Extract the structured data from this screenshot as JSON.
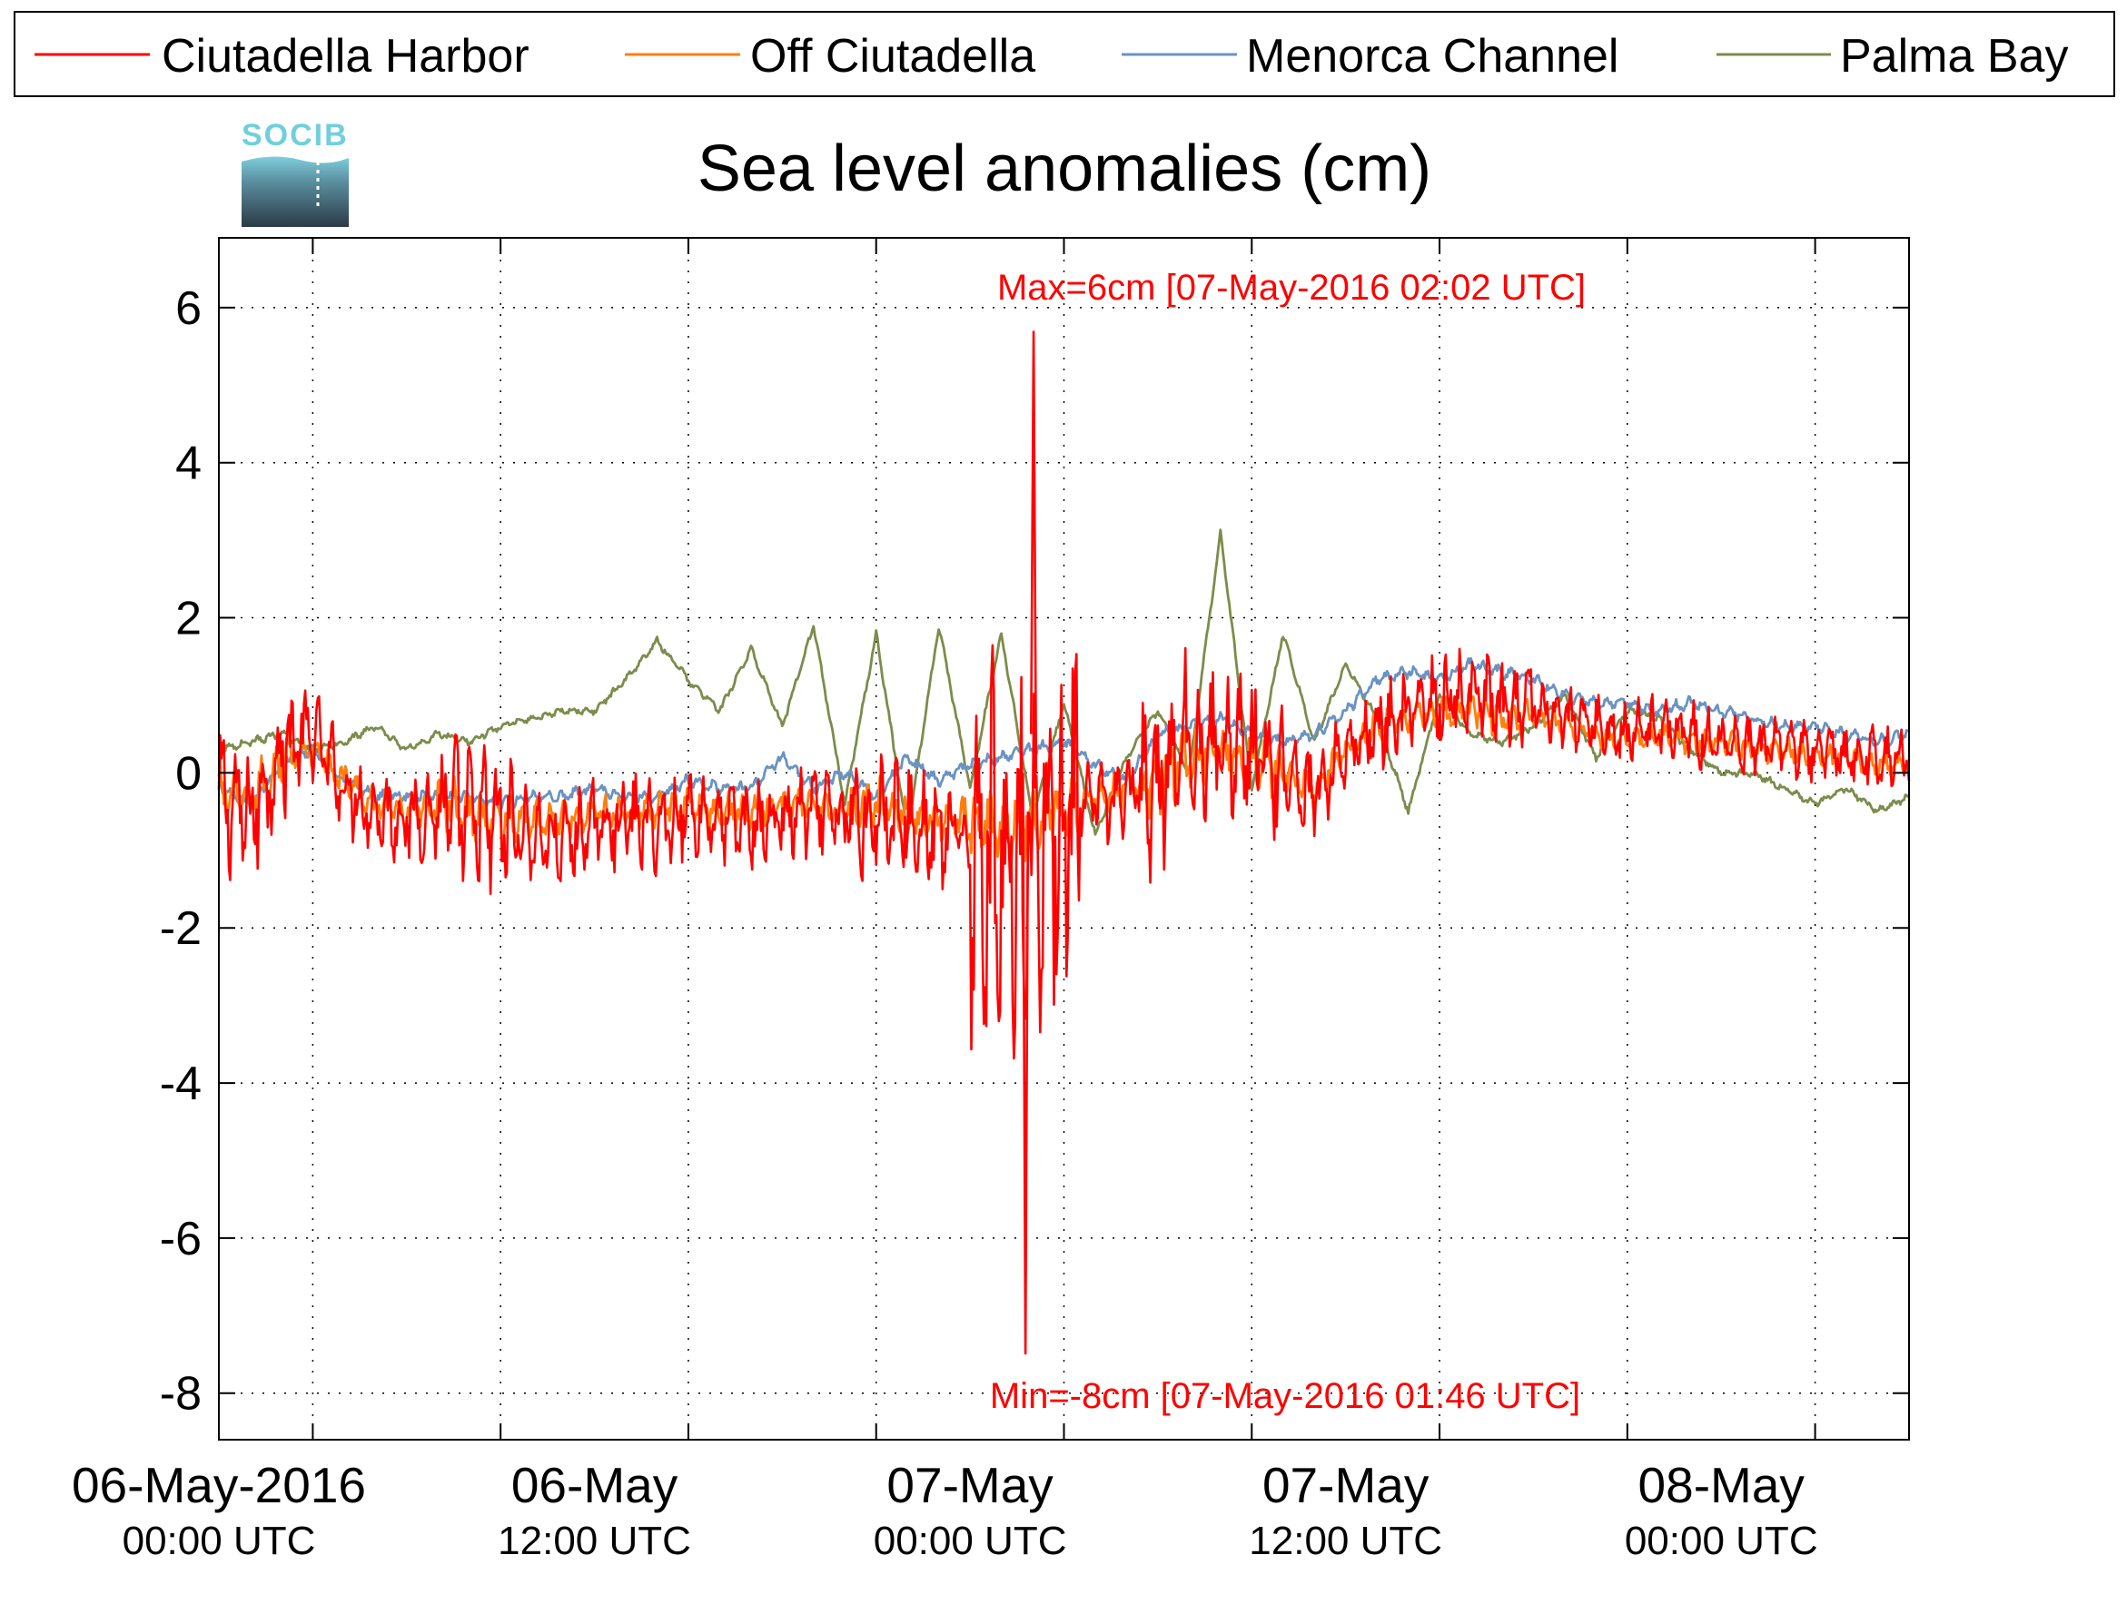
{
  "logo": {
    "text": "SOCIB"
  },
  "chart_data": {
    "type": "line",
    "title": "Sea level anomalies (cm)",
    "xlabel": "",
    "ylabel": "",
    "xlim": [
      "06-May-2016 00:00 UTC",
      "08-May-2016 06:00 UTC"
    ],
    "ylim": [
      -8.6,
      6.9
    ],
    "grid": true,
    "legend_placement": "top",
    "yticks": [
      6,
      4,
      2,
      0,
      -2,
      -4,
      -6,
      -8
    ],
    "ytick_labels": [
      "6",
      "4",
      "2",
      "0",
      "-2",
      "-4",
      "-6",
      "-8"
    ],
    "xtick_labels": [
      {
        "main": "06-May-2016",
        "sub": "00:00 UTC"
      },
      {
        "main": "06-May",
        "sub": "12:00 UTC"
      },
      {
        "main": "07-May",
        "sub": "00:00 UTC"
      },
      {
        "main": "07-May",
        "sub": "12:00 UTC"
      },
      {
        "main": "08-May",
        "sub": "00:00 UTC"
      }
    ],
    "annotations": {
      "max": {
        "text": "Max=6cm [07-May-2016 02:02 UTC]",
        "hours_since_start": 26.03,
        "value": 5.7
      },
      "min": {
        "text": "Min=-8cm [07-May-2016 01:46 UTC]",
        "hours_since_start": 25.77,
        "value": -7.5
      }
    },
    "series": [
      {
        "name": "Ciutadella Harbor",
        "color": "#ff0000",
        "noise": 0.55,
        "points": [
          [
            0,
            -0.3
          ],
          [
            1,
            -0.6
          ],
          [
            2,
            0.3
          ],
          [
            3,
            0.5
          ],
          [
            4,
            -0.2
          ],
          [
            5,
            -0.5
          ],
          [
            6,
            -0.6
          ],
          [
            7,
            -0.5
          ],
          [
            8,
            -0.6
          ],
          [
            9,
            -0.7
          ],
          [
            10,
            -0.8
          ],
          [
            11,
            -0.9
          ],
          [
            12,
            -0.7
          ],
          [
            13,
            -0.6
          ],
          [
            14,
            -0.7
          ],
          [
            15,
            -0.5
          ],
          [
            16,
            -0.6
          ],
          [
            17,
            -0.7
          ],
          [
            18,
            -0.6
          ],
          [
            19,
            -0.5
          ],
          [
            20,
            -0.6
          ],
          [
            21,
            -0.5
          ],
          [
            22,
            -0.7
          ],
          [
            23,
            -0.8
          ],
          [
            24,
            -0.9
          ],
          [
            25,
            -1.2
          ],
          [
            26,
            -1.0
          ],
          [
            27,
            -0.6
          ],
          [
            28,
            -0.4
          ],
          [
            29,
            -0.3
          ],
          [
            30,
            -0.2
          ],
          [
            31,
            0.3
          ],
          [
            32,
            0.4
          ],
          [
            33,
            0.3
          ],
          [
            34,
            0.0
          ],
          [
            35,
            -0.3
          ],
          [
            36,
            0.3
          ],
          [
            37,
            0.6
          ],
          [
            38,
            0.8
          ],
          [
            39,
            0.9
          ],
          [
            40,
            1.0
          ],
          [
            41,
            0.8
          ],
          [
            42,
            0.9
          ],
          [
            43,
            0.7
          ],
          [
            44,
            0.6
          ],
          [
            45,
            0.5
          ],
          [
            46,
            0.6
          ],
          [
            47,
            0.5
          ],
          [
            48,
            0.4
          ],
          [
            49,
            0.3
          ],
          [
            50,
            0.3
          ],
          [
            51,
            0.3
          ],
          [
            52,
            0.2
          ],
          [
            53,
            0.2
          ],
          [
            54,
            0.2
          ]
        ]
      },
      {
        "name": "Off Ciutadella",
        "color": "#ff7f0e",
        "noise": 0.22,
        "points": [
          [
            0,
            -0.2
          ],
          [
            1,
            -0.4
          ],
          [
            2,
            0.2
          ],
          [
            3,
            0.3
          ],
          [
            4,
            -0.1
          ],
          [
            5,
            -0.4
          ],
          [
            6,
            -0.5
          ],
          [
            7,
            -0.4
          ],
          [
            8,
            -0.5
          ],
          [
            9,
            -0.6
          ],
          [
            10,
            -0.6
          ],
          [
            11,
            -0.6
          ],
          [
            12,
            -0.5
          ],
          [
            13,
            -0.5
          ],
          [
            14,
            -0.5
          ],
          [
            15,
            -0.4
          ],
          [
            16,
            -0.5
          ],
          [
            17,
            -0.5
          ],
          [
            18,
            -0.4
          ],
          [
            19,
            -0.4
          ],
          [
            20,
            -0.5
          ],
          [
            21,
            -0.4
          ],
          [
            22,
            -0.5
          ],
          [
            23,
            -0.6
          ],
          [
            24,
            -0.6
          ],
          [
            25,
            -0.7
          ],
          [
            26,
            -0.6
          ],
          [
            27,
            -0.4
          ],
          [
            28,
            -0.3
          ],
          [
            29,
            -0.2
          ],
          [
            30,
            -0.1
          ],
          [
            31,
            0.2
          ],
          [
            32,
            0.3
          ],
          [
            33,
            0.2
          ],
          [
            34,
            0.0
          ],
          [
            35,
            -0.2
          ],
          [
            36,
            0.3
          ],
          [
            37,
            0.6
          ],
          [
            38,
            0.7
          ],
          [
            39,
            0.8
          ],
          [
            40,
            0.8
          ],
          [
            41,
            0.7
          ],
          [
            42,
            0.7
          ],
          [
            43,
            0.6
          ],
          [
            44,
            0.5
          ],
          [
            45,
            0.4
          ],
          [
            46,
            0.5
          ],
          [
            47,
            0.4
          ],
          [
            48,
            0.4
          ],
          [
            49,
            0.3
          ],
          [
            50,
            0.3
          ],
          [
            51,
            0.2
          ],
          [
            52,
            0.2
          ],
          [
            53,
            0.1
          ],
          [
            54,
            0.1
          ]
        ]
      },
      {
        "name": "Menorca Channel",
        "color": "#6b93c0",
        "noise": 0.08,
        "points": [
          [
            0,
            -0.2
          ],
          [
            1,
            -0.4
          ],
          [
            2,
            0.1
          ],
          [
            3,
            0.3
          ],
          [
            4,
            -0.1
          ],
          [
            5,
            -0.3
          ],
          [
            6,
            -0.3
          ],
          [
            7,
            -0.3
          ],
          [
            8,
            -0.3
          ],
          [
            9,
            -0.4
          ],
          [
            10,
            -0.3
          ],
          [
            11,
            -0.3
          ],
          [
            12,
            -0.2
          ],
          [
            13,
            -0.3
          ],
          [
            14,
            -0.3
          ],
          [
            15,
            -0.1
          ],
          [
            16,
            -0.2
          ],
          [
            17,
            -0.2
          ],
          [
            18,
            0.2
          ],
          [
            19,
            -0.2
          ],
          [
            20,
            0.0
          ],
          [
            21,
            -0.3
          ],
          [
            22,
            0.2
          ],
          [
            23,
            -0.1
          ],
          [
            24,
            0.1
          ],
          [
            25,
            0.2
          ],
          [
            26,
            0.3
          ],
          [
            27,
            0.4
          ],
          [
            28,
            0.1
          ],
          [
            29,
            -0.1
          ],
          [
            30,
            0.5
          ],
          [
            31,
            0.6
          ],
          [
            32,
            0.7
          ],
          [
            33,
            0.5
          ],
          [
            34,
            0.4
          ],
          [
            35,
            0.5
          ],
          [
            36,
            0.8
          ],
          [
            37,
            1.2
          ],
          [
            38,
            1.3
          ],
          [
            39,
            1.2
          ],
          [
            40,
            1.4
          ],
          [
            41,
            1.3
          ],
          [
            42,
            1.2
          ],
          [
            43,
            1.0
          ],
          [
            44,
            0.9
          ],
          [
            45,
            0.9
          ],
          [
            46,
            0.8
          ],
          [
            47,
            0.9
          ],
          [
            48,
            0.8
          ],
          [
            49,
            0.7
          ],
          [
            50,
            0.6
          ],
          [
            51,
            0.6
          ],
          [
            52,
            0.5
          ],
          [
            53,
            0.4
          ],
          [
            54,
            0.5
          ]
        ]
      },
      {
        "name": "Palma Bay",
        "color": "#7c8c4c",
        "noise": 0.05,
        "points": [
          [
            0,
            0.3
          ],
          [
            1,
            0.4
          ],
          [
            2,
            0.5
          ],
          [
            3,
            0.3
          ],
          [
            4,
            0.4
          ],
          [
            5,
            0.6
          ],
          [
            6,
            0.3
          ],
          [
            7,
            0.5
          ],
          [
            8,
            0.4
          ],
          [
            9,
            0.6
          ],
          [
            10,
            0.7
          ],
          [
            11,
            0.8
          ],
          [
            12,
            0.8
          ],
          [
            13,
            1.2
          ],
          [
            14,
            1.7
          ],
          [
            15,
            1.2
          ],
          [
            16,
            0.8
          ],
          [
            17,
            1.6
          ],
          [
            18,
            0.6
          ],
          [
            19,
            1.9
          ],
          [
            20,
            -0.4
          ],
          [
            21,
            1.8
          ],
          [
            22,
            -0.8
          ],
          [
            23,
            1.9
          ],
          [
            24,
            -0.2
          ],
          [
            25,
            1.8
          ],
          [
            26,
            -0.6
          ],
          [
            27,
            0.9
          ],
          [
            28,
            -0.8
          ],
          [
            29,
            0.2
          ],
          [
            30,
            0.8
          ],
          [
            31,
            0.0
          ],
          [
            32,
            3.1
          ],
          [
            33,
            -0.2
          ],
          [
            34,
            1.8
          ],
          [
            35,
            0.4
          ],
          [
            36,
            1.4
          ],
          [
            37,
            0.7
          ],
          [
            38,
            -0.5
          ],
          [
            39,
            1.0
          ],
          [
            40,
            0.5
          ],
          [
            41,
            0.4
          ],
          [
            42,
            0.6
          ],
          [
            43,
            1.0
          ],
          [
            44,
            0.2
          ],
          [
            45,
            0.8
          ],
          [
            46,
            0.7
          ],
          [
            47,
            0.3
          ],
          [
            48,
            0.0
          ],
          [
            49,
            0.0
          ],
          [
            50,
            -0.2
          ],
          [
            51,
            -0.4
          ],
          [
            52,
            -0.2
          ],
          [
            53,
            -0.5
          ],
          [
            54,
            -0.3
          ]
        ]
      }
    ]
  }
}
